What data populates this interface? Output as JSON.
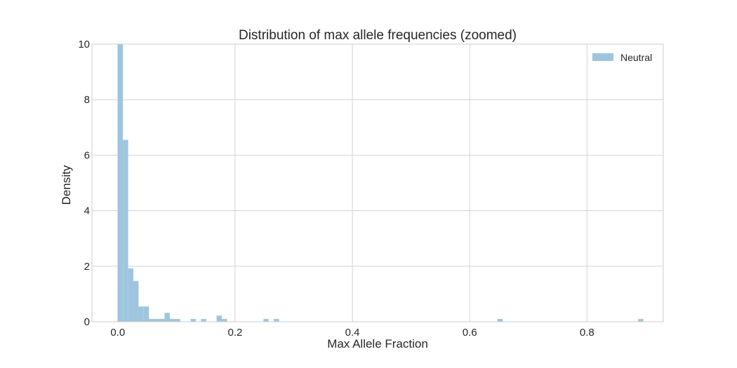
{
  "chart_data": {
    "type": "bar",
    "title": "Distribution of max allele frequencies (zoomed)",
    "xlabel": "Max Allele Fraction",
    "ylabel": "Density",
    "xlim": [
      -0.044,
      0.93
    ],
    "ylim": [
      0,
      10
    ],
    "x_ticks": [
      0.0,
      0.2,
      0.4,
      0.6,
      0.8
    ],
    "x_tick_labels": [
      "0.0",
      "0.2",
      "0.4",
      "0.6",
      "0.8"
    ],
    "y_ticks": [
      0,
      2,
      4,
      6,
      8,
      10
    ],
    "y_tick_labels": [
      "0",
      "2",
      "4",
      "6",
      "8",
      "10"
    ],
    "grid": true,
    "legend_position": "top-right",
    "color": "#9fc5de",
    "series": [
      {
        "name": "Neutral",
        "bin_width": 0.00887,
        "bin_starts": [
          0.0,
          0.00887,
          0.01774,
          0.02661,
          0.03548,
          0.04435,
          0.05322,
          0.06209,
          0.07096,
          0.07983,
          0.0887,
          0.09757,
          0.12418,
          0.14192,
          0.16853,
          0.1774,
          0.24836,
          0.2661,
          0.64751,
          0.887
        ],
        "values": [
          10.0,
          6.55,
          1.92,
          1.47,
          0.55,
          0.55,
          0.1,
          0.1,
          0.1,
          0.32,
          0.1,
          0.1,
          0.1,
          0.1,
          0.22,
          0.1,
          0.1,
          0.1,
          0.1,
          0.1
        ]
      }
    ]
  }
}
